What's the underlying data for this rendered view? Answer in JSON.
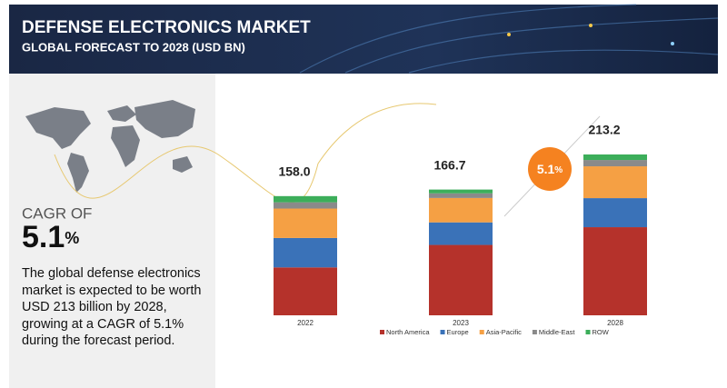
{
  "chart_data": {
    "type": "bar",
    "stacked": true,
    "title": "DEFENSE ELECTRONICS MARKET",
    "subtitle": "GLOBAL FORECAST TO 2028 (USD BN)",
    "categories": [
      "2022",
      "2023",
      "2028"
    ],
    "series": [
      {
        "name": "North America",
        "color": "#b5322b",
        "values": [
          63.5,
          93.3,
          116.8
        ]
      },
      {
        "name": "Europe",
        "color": "#3a72b8",
        "values": [
          39.0,
          29.9,
          38.5
        ]
      },
      {
        "name": "Asia-Pacific",
        "color": "#f5a044",
        "values": [
          39.0,
          32.3,
          42.2
        ]
      },
      {
        "name": "Middle-East",
        "color": "#8a8a8a",
        "values": [
          8.3,
          6.2,
          8.4
        ]
      },
      {
        "name": "ROW",
        "color": "#3cae5a",
        "values": [
          8.2,
          5.0,
          7.3
        ]
      }
    ],
    "totals": [
      158.0,
      166.7,
      213.2
    ],
    "value_labels": [
      "158.0",
      "166.7",
      "213.2"
    ],
    "legend": "bottom"
  },
  "panel": {
    "cagr_label": "CAGR OF",
    "cagr_value": "5.1",
    "cagr_unit": "%",
    "description": "The global defense electronics market is expected to be worth USD 213 billion by 2028, growing at a CAGR of 5.1% during the forecast period."
  }
}
